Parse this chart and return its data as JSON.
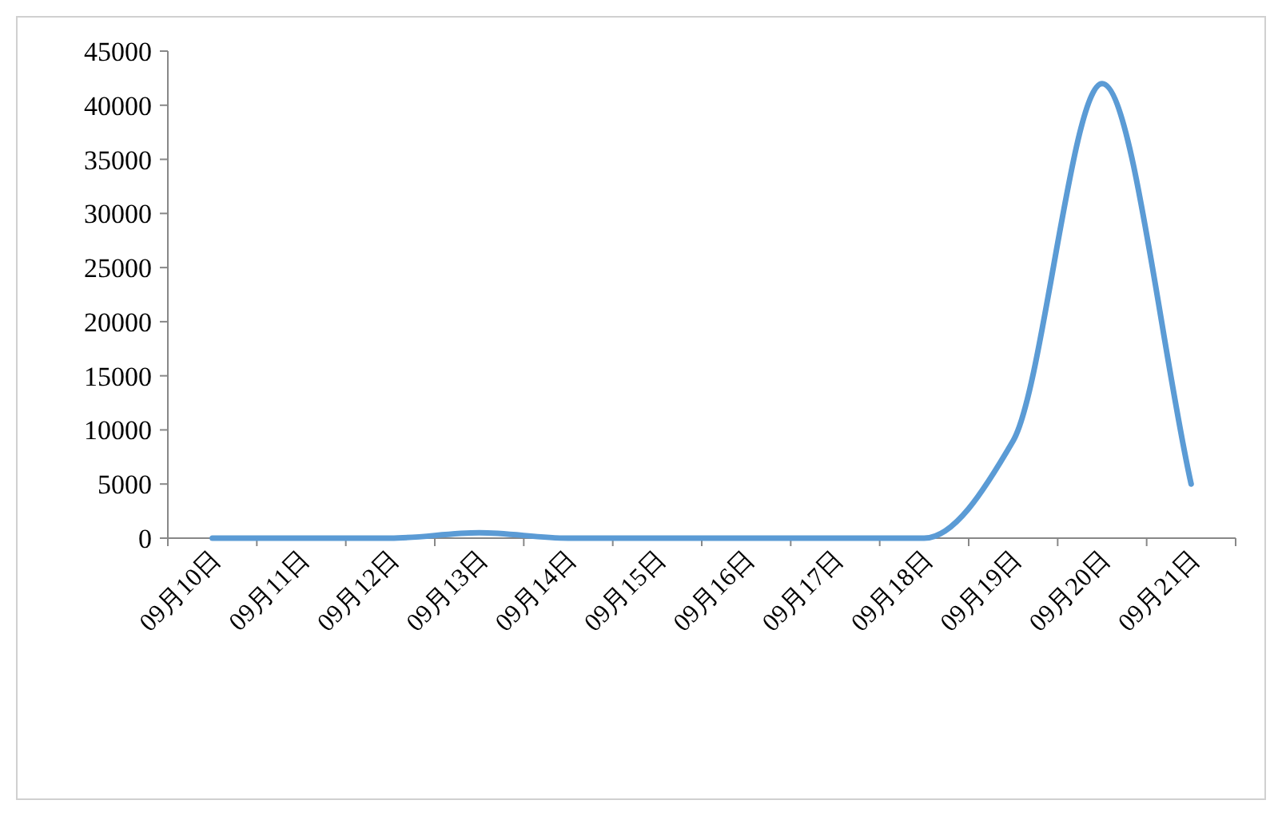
{
  "chart_data": {
    "type": "line",
    "categories": [
      "09月10日",
      "09月11日",
      "09月12日",
      "09月13日",
      "09月14日",
      "09月15日",
      "09月16日",
      "09月17日",
      "09月18日",
      "09月19日",
      "09月20日",
      "09月21日"
    ],
    "values": [
      0,
      0,
      0,
      500,
      0,
      0,
      0,
      0,
      0,
      9000,
      42000,
      5000
    ],
    "color": "#5b9bd5",
    "ylim": [
      0,
      45000
    ],
    "yticks": [
      0,
      5000,
      10000,
      15000,
      20000,
      25000,
      30000,
      35000,
      40000,
      45000
    ]
  }
}
